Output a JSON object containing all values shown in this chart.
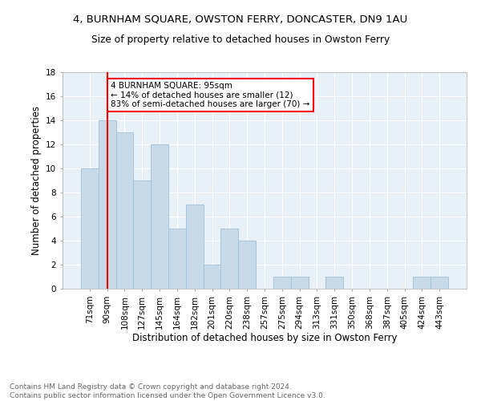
{
  "title1": "4, BURNHAM SQUARE, OWSTON FERRY, DONCASTER, DN9 1AU",
  "title2": "Size of property relative to detached houses in Owston Ferry",
  "xlabel": "Distribution of detached houses by size in Owston Ferry",
  "ylabel": "Number of detached properties",
  "footnote1": "Contains HM Land Registry data © Crown copyright and database right 2024.",
  "footnote2": "Contains public sector information licensed under the Open Government Licence v3.0.",
  "categories": [
    "71sqm",
    "90sqm",
    "108sqm",
    "127sqm",
    "145sqm",
    "164sqm",
    "182sqm",
    "201sqm",
    "220sqm",
    "238sqm",
    "257sqm",
    "275sqm",
    "294sqm",
    "313sqm",
    "331sqm",
    "350sqm",
    "368sqm",
    "387sqm",
    "405sqm",
    "424sqm",
    "443sqm"
  ],
  "values": [
    10,
    14,
    13,
    9,
    12,
    5,
    7,
    2,
    5,
    4,
    0,
    1,
    1,
    0,
    1,
    0,
    0,
    0,
    0,
    1,
    1
  ],
  "bar_color": "#c8d9e8",
  "bar_edge_color": "#a8c4d8",
  "background_color": "#e8f0f8",
  "red_line_index": 1,
  "annotation_line1": "4 BURNHAM SQUARE: 95sqm",
  "annotation_line2": "← 14% of detached houses are smaller (12)",
  "annotation_line3": "83% of semi-detached houses are larger (70) →",
  "annotation_box_color": "white",
  "annotation_box_edge": "red",
  "ylim": [
    0,
    18
  ],
  "yticks": [
    0,
    2,
    4,
    6,
    8,
    10,
    12,
    14,
    16,
    18
  ]
}
